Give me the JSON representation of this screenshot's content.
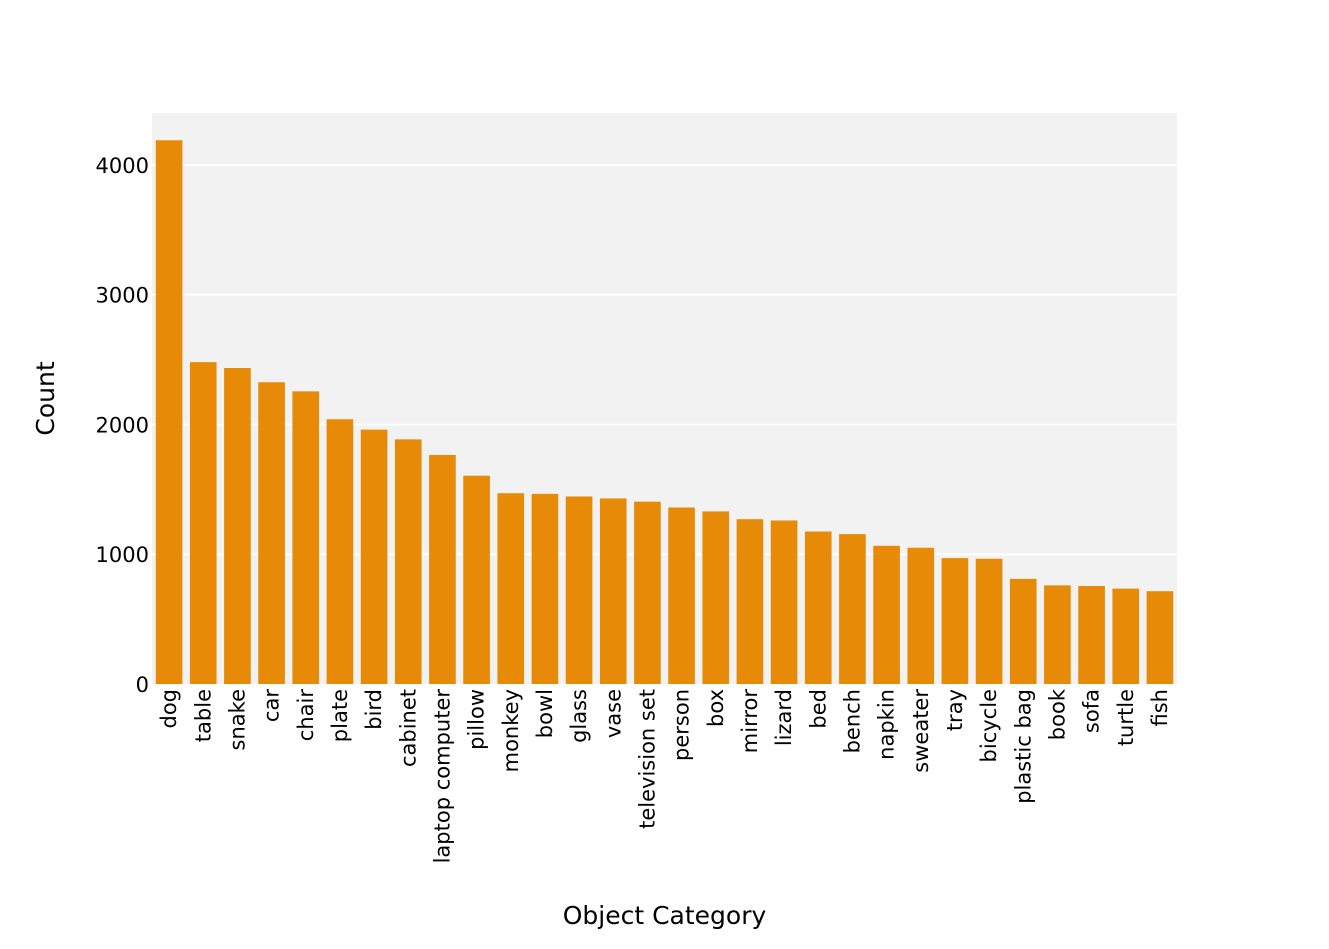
{
  "chart_data": {
    "type": "bar",
    "title": "",
    "xlabel": "Object Category",
    "ylabel": "Count",
    "ylim": [
      0,
      4400
    ],
    "yticks": [
      0,
      1000,
      2000,
      3000,
      4000
    ],
    "grid": true,
    "legend": "none",
    "colors": {
      "bar": "#E68A07",
      "plot_background": "#F2F2F2",
      "gridline": "#FFFFFF"
    },
    "categories": [
      "dog",
      "table",
      "snake",
      "car",
      "chair",
      "plate",
      "bird",
      "cabinet",
      "laptop computer",
      "pillow",
      "monkey",
      "bowl",
      "glass",
      "vase",
      "television set",
      "person",
      "box",
      "mirror",
      "lizard",
      "bed",
      "bench",
      "napkin",
      "sweater",
      "tray",
      "bicycle",
      "plastic bag",
      "book",
      "sofa",
      "turtle",
      "fish"
    ],
    "values": [
      4190,
      2480,
      2435,
      2325,
      2255,
      2040,
      1960,
      1885,
      1765,
      1605,
      1470,
      1465,
      1445,
      1430,
      1405,
      1360,
      1330,
      1270,
      1260,
      1175,
      1155,
      1065,
      1050,
      970,
      965,
      810,
      760,
      755,
      735,
      715
    ]
  }
}
